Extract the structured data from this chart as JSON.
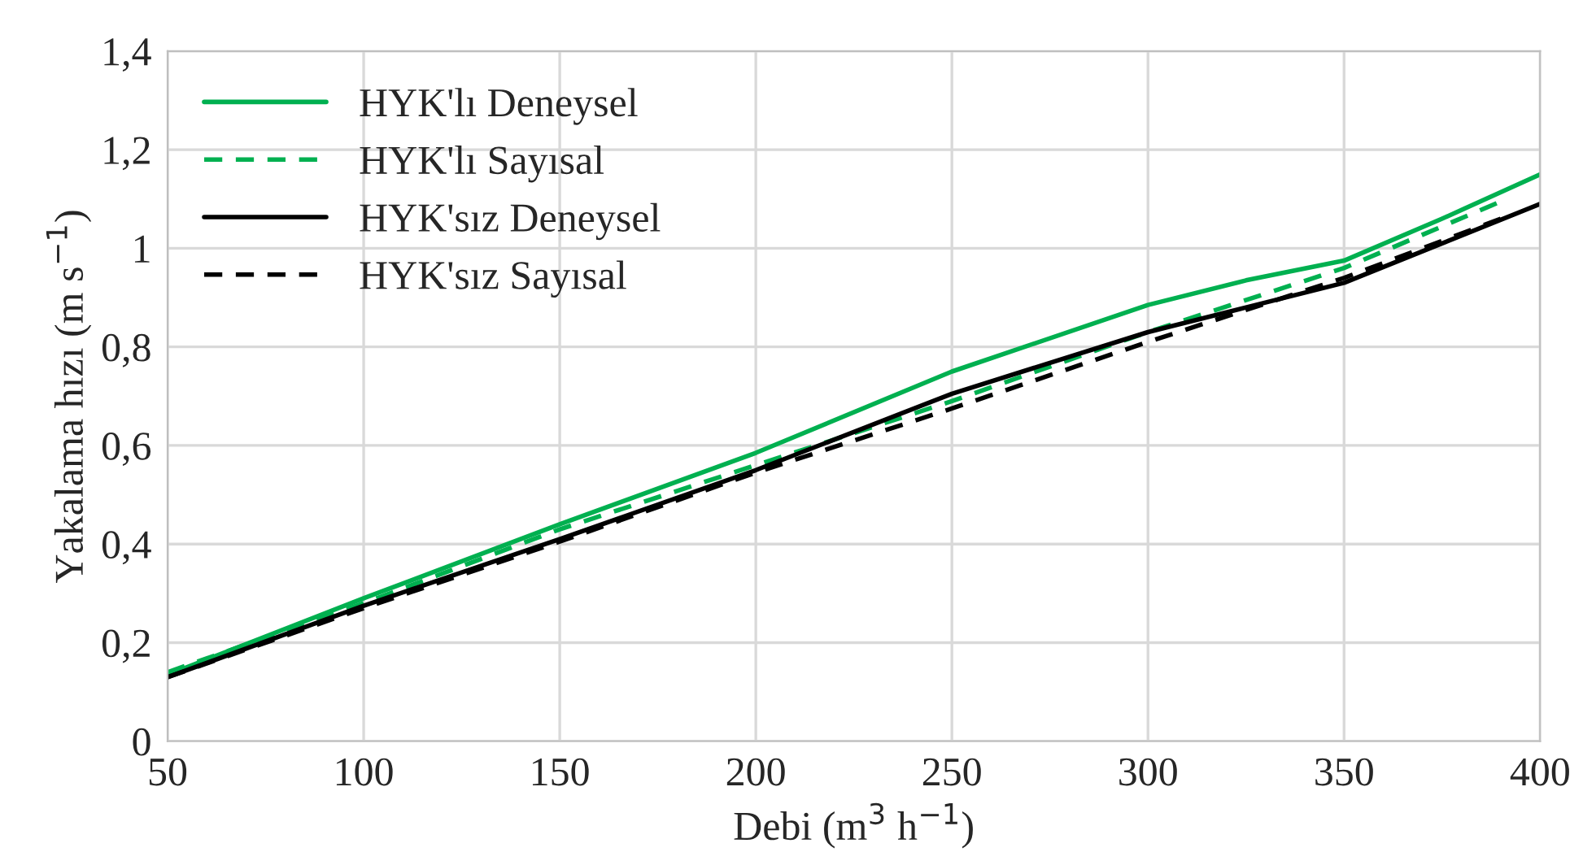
{
  "chart_data": {
    "type": "line",
    "xlabel": "Debi (m$^{3}$ h$^{−1}$)",
    "ylabel": "Yakalama hızı (m s$^{−1}$)",
    "xlim": [
      50,
      400
    ],
    "xticks": [
      50,
      100,
      150,
      200,
      250,
      300,
      350,
      400
    ],
    "ylim": [
      0,
      1.4
    ],
    "yticks": [
      0,
      {
        "value": 0.2,
        "label": "0,2"
      },
      {
        "value": 0.4,
        "label": "0,4"
      },
      {
        "value": 0.6,
        "label": "0,6"
      },
      {
        "value": 0.8,
        "label": "0,8"
      },
      1,
      {
        "value": 1.2,
        "label": "1,2"
      },
      {
        "value": 1.4,
        "label": "1,4"
      }
    ],
    "grid": true,
    "legend": "top left",
    "marker": "none",
    "series": [
      {
        "name": "HYK'lı Deneysel",
        "color": "#00b050",
        "line_style": "solid",
        "x": [
          50,
          100,
          150,
          200,
          250,
          300,
          325,
          350,
          375,
          400
        ],
        "values": [
          0.135,
          0.29,
          0.44,
          0.585,
          0.75,
          0.885,
          0.935,
          0.975,
          1.06,
          1.15
        ]
      },
      {
        "name": "HYK'lı Sayısal",
        "color": "#00b050",
        "line_style": "dashed",
        "x": [
          50,
          100,
          150,
          200,
          250,
          300,
          350,
          390
        ],
        "values": [
          0.14,
          0.28,
          0.43,
          0.56,
          0.69,
          0.83,
          0.96,
          1.095
        ]
      },
      {
        "name": "HYK'sız Deneysel",
        "color": "#000000",
        "line_style": "solid",
        "x": [
          50,
          100,
          150,
          200,
          250,
          300,
          325,
          350,
          400
        ],
        "values": [
          0.13,
          0.275,
          0.41,
          0.55,
          0.705,
          0.83,
          0.88,
          0.93,
          1.09
        ]
      },
      {
        "name": "HYK'sız Sayısal",
        "color": "#000000",
        "line_style": "dashed",
        "x": [
          50,
          100,
          150,
          200,
          250,
          300,
          350,
          390
        ],
        "values": [
          0.13,
          0.27,
          0.405,
          0.545,
          0.675,
          0.81,
          0.94,
          1.06
        ]
      }
    ]
  }
}
